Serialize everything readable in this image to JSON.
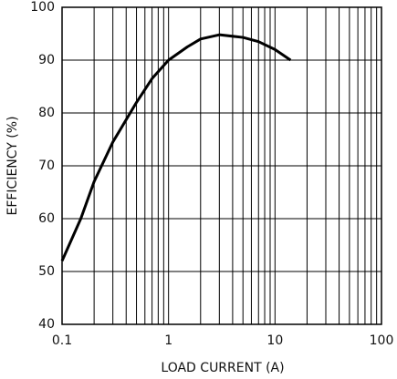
{
  "chart_data": {
    "type": "line",
    "xlabel": "LOAD CURRENT (A)",
    "ylabel": "EFFICIENCY (%)",
    "x": [
      0.1,
      0.15,
      0.2,
      0.3,
      0.5,
      0.7,
      1,
      1.5,
      2,
      3,
      5,
      7,
      10,
      14
    ],
    "series": [
      {
        "name": "Efficiency",
        "color": "#000000",
        "values": [
          52,
          60,
          67,
          74.5,
          82,
          86.5,
          90,
          92.5,
          94,
          94.8,
          94.3,
          93.5,
          92,
          90
        ]
      }
    ],
    "xscale": "log",
    "xlim": [
      0.1,
      100
    ],
    "xticks": [
      0.1,
      1,
      10,
      100
    ],
    "xminorticks": [
      0.2,
      0.3,
      0.4,
      0.5,
      0.6,
      0.7,
      0.8,
      0.9,
      2,
      3,
      4,
      5,
      6,
      7,
      8,
      9,
      20,
      30,
      40,
      50,
      60,
      70,
      80,
      90
    ],
    "ylim": [
      40,
      100
    ],
    "yticks": [
      40,
      50,
      60,
      70,
      80,
      90,
      100
    ],
    "grid": true
  }
}
